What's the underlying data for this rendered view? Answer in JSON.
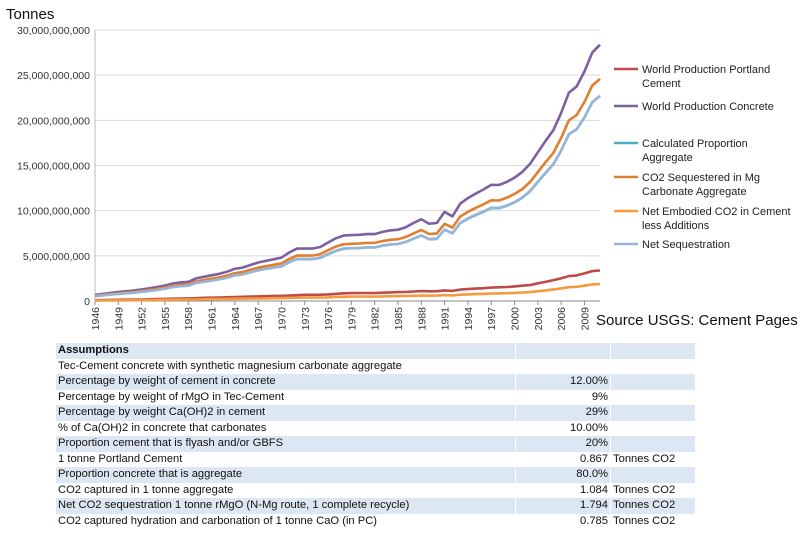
{
  "chart_data": {
    "type": "line",
    "ylabel": "Tonnes",
    "ylim": [
      0,
      30000000000
    ],
    "yticks": [
      0,
      5000000000,
      10000000000,
      15000000000,
      20000000000,
      25000000000,
      30000000000
    ],
    "ytick_labels": [
      "0",
      "5,000,000,000",
      "10,000,000,000",
      "15,000,000,000",
      "20,000,000,000",
      "25,000,000,000",
      "30,000,000,000"
    ],
    "grid": "horizontal",
    "legend_position": "right",
    "x": [
      1946,
      1947,
      1948,
      1949,
      1950,
      1951,
      1952,
      1953,
      1954,
      1955,
      1956,
      1957,
      1958,
      1959,
      1960,
      1961,
      1962,
      1963,
      1964,
      1965,
      1966,
      1967,
      1968,
      1969,
      1970,
      1971,
      1972,
      1973,
      1974,
      1975,
      1976,
      1977,
      1978,
      1979,
      1980,
      1981,
      1982,
      1983,
      1984,
      1985,
      1986,
      1987,
      1988,
      1989,
      1990,
      1991,
      1992,
      1993,
      1994,
      1995,
      1996,
      1997,
      1998,
      1999,
      2000,
      2001,
      2002,
      2003,
      2004,
      2005,
      2006,
      2007,
      2008,
      2009,
      2010,
      2011
    ],
    "xtick_labels": [
      "1946",
      "1949",
      "1952",
      "1955",
      "1958",
      "1961",
      "1964",
      "1967",
      "1970",
      "1973",
      "1976",
      "1979",
      "1982",
      "1985",
      "1988",
      "1991",
      "1994",
      "1997",
      "2000",
      "2003",
      "2006",
      "2009"
    ],
    "series": [
      {
        "name": "World Production Portland Cement",
        "color": "#be4b48",
        "values": [
          0.08,
          0.1,
          0.12,
          0.13,
          0.14,
          0.15,
          0.17,
          0.19,
          0.21,
          0.23,
          0.25,
          0.27,
          0.29,
          0.31,
          0.35,
          0.37,
          0.39,
          0.41,
          0.44,
          0.46,
          0.49,
          0.51,
          0.53,
          0.56,
          0.57,
          0.6,
          0.64,
          0.69,
          0.69,
          0.7,
          0.73,
          0.79,
          0.85,
          0.88,
          0.89,
          0.89,
          0.88,
          0.92,
          0.95,
          0.98,
          1.0,
          1.05,
          1.1,
          1.07,
          1.09,
          1.17,
          1.12,
          1.26,
          1.32,
          1.37,
          1.42,
          1.48,
          1.52,
          1.55,
          1.62,
          1.69,
          1.76,
          1.96,
          2.11,
          2.31,
          2.51,
          2.76,
          2.83,
          3.05,
          3.31,
          3.38
        ]
      },
      {
        "name": "World Production Concrete",
        "color": "#7d60a0",
        "values": [
          0.67,
          0.79,
          0.9,
          0.98,
          1.08,
          1.16,
          1.28,
          1.41,
          1.55,
          1.72,
          1.94,
          2.06,
          2.12,
          2.5,
          2.68,
          2.85,
          3.01,
          3.24,
          3.56,
          3.7,
          3.99,
          4.26,
          4.44,
          4.62,
          4.8,
          5.37,
          5.8,
          5.8,
          5.8,
          5.98,
          6.48,
          6.94,
          7.24,
          7.3,
          7.33,
          7.41,
          7.41,
          7.65,
          7.82,
          7.89,
          8.17,
          8.63,
          9.06,
          8.56,
          8.63,
          9.86,
          9.36,
          10.77,
          11.39,
          11.89,
          12.34,
          12.86,
          12.84,
          13.19,
          13.65,
          14.29,
          15.19,
          16.46,
          17.73,
          18.92,
          20.83,
          23.06,
          23.76,
          25.42,
          27.49,
          28.37
        ]
      },
      {
        "name": "Calculated Proportion Aggregate",
        "color": "#4bacc6",
        "values": [
          0.54,
          0.63,
          0.72,
          0.78,
          0.86,
          0.93,
          1.02,
          1.13,
          1.24,
          1.38,
          1.55,
          1.65,
          1.7,
          2.0,
          2.14,
          2.28,
          2.41,
          2.59,
          2.85,
          2.96,
          3.19,
          3.41,
          3.55,
          3.7,
          3.84,
          4.3,
          4.64,
          4.64,
          4.64,
          4.78,
          5.18,
          5.55,
          5.79,
          5.84,
          5.86,
          5.93,
          5.93,
          6.12,
          6.26,
          6.31,
          6.54,
          6.9,
          7.25,
          6.85,
          6.9,
          7.89,
          7.49,
          8.62,
          9.11,
          9.51,
          9.87,
          10.29,
          10.27,
          10.55,
          10.92,
          11.43,
          12.15,
          13.17,
          14.18,
          15.14,
          16.66,
          18.45,
          19.01,
          20.34,
          21.99,
          22.7
        ]
      },
      {
        "name": "CO2 Sequestered in Mg Carbonate Aggregate",
        "color": "#e07f2f",
        "values": [
          0.58,
          0.68,
          0.78,
          0.85,
          0.94,
          1.01,
          1.11,
          1.22,
          1.34,
          1.49,
          1.68,
          1.79,
          1.84,
          2.17,
          2.32,
          2.47,
          2.61,
          2.81,
          3.09,
          3.21,
          3.46,
          3.69,
          3.85,
          4.01,
          4.16,
          4.66,
          5.03,
          5.03,
          5.03,
          5.19,
          5.62,
          6.02,
          6.28,
          6.33,
          6.36,
          6.43,
          6.43,
          6.63,
          6.78,
          6.84,
          7.08,
          7.48,
          7.86,
          7.42,
          7.48,
          8.55,
          8.12,
          9.34,
          9.88,
          10.31,
          10.7,
          11.15,
          11.13,
          11.44,
          11.84,
          12.39,
          13.17,
          14.27,
          15.37,
          16.41,
          18.06,
          20.0,
          20.6,
          22.04,
          23.84,
          24.6
        ]
      },
      {
        "name": "Net Embodied CO2 in Cement less Additions",
        "color": "#f59a3f",
        "values": [
          0.05,
          0.06,
          0.07,
          0.07,
          0.08,
          0.09,
          0.1,
          0.11,
          0.12,
          0.13,
          0.14,
          0.15,
          0.16,
          0.17,
          0.19,
          0.21,
          0.22,
          0.23,
          0.24,
          0.26,
          0.27,
          0.28,
          0.29,
          0.31,
          0.32,
          0.33,
          0.36,
          0.38,
          0.38,
          0.39,
          0.4,
          0.44,
          0.47,
          0.49,
          0.49,
          0.49,
          0.49,
          0.51,
          0.53,
          0.54,
          0.55,
          0.58,
          0.61,
          0.59,
          0.6,
          0.65,
          0.62,
          0.7,
          0.73,
          0.76,
          0.79,
          0.82,
          0.84,
          0.86,
          0.9,
          0.94,
          0.98,
          1.09,
          1.17,
          1.28,
          1.39,
          1.53,
          1.57,
          1.69,
          1.84,
          1.88
        ]
      },
      {
        "name": "Net Sequestration",
        "color": "#98b4d8",
        "values": [
          0.53,
          0.62,
          0.71,
          0.78,
          0.86,
          0.92,
          1.01,
          1.11,
          1.22,
          1.36,
          1.54,
          1.64,
          1.68,
          2.0,
          2.13,
          2.26,
          2.39,
          2.58,
          2.85,
          2.95,
          3.19,
          3.41,
          3.56,
          3.7,
          3.84,
          4.33,
          4.67,
          4.65,
          4.65,
          4.8,
          5.22,
          5.58,
          5.81,
          5.84,
          5.87,
          5.94,
          5.94,
          6.12,
          6.25,
          6.3,
          6.53,
          6.9,
          7.25,
          6.83,
          6.88,
          7.9,
          7.5,
          8.64,
          9.15,
          9.55,
          9.91,
          10.33,
          10.29,
          10.58,
          10.94,
          11.45,
          12.19,
          13.18,
          14.2,
          15.13,
          16.67,
          18.47,
          19.03,
          20.35,
          22.0,
          22.72
        ]
      }
    ],
    "values_unit_note": "series values are in billions of tonnes"
  },
  "source_text": "Source USGS: Cement Pages",
  "table": {
    "header": "Assumptions",
    "rows": [
      {
        "label": "Tec-Cement concrete with synthetic magnesium carbonate aggregate",
        "value": "",
        "unit": ""
      },
      {
        "label": "Percentage by weight of cement in concrete",
        "value": "12.00%",
        "unit": ""
      },
      {
        "label": "Percentage by weight of rMgO in Tec-Cement",
        "value": "9%",
        "unit": ""
      },
      {
        "label": "Percentage by weight Ca(OH)2 in cement",
        "value": "29%",
        "unit": ""
      },
      {
        "label": "% of Ca(OH)2 in concrete that carbonates",
        "value": "10.00%",
        "unit": ""
      },
      {
        "label": "Proportion cement that is flyash and/or GBFS",
        "value": "20%",
        "unit": ""
      },
      {
        "label": "1 tonne Portland Cement",
        "value": "0.867",
        "unit": "Tonnes CO2"
      },
      {
        "label": "Proportion concrete that is aggregate",
        "value": "80.0%",
        "unit": ""
      },
      {
        "label": "CO2 captured in 1 tonne aggregate",
        "value": "1.084",
        "unit": "Tonnes CO2"
      },
      {
        "label": "Net CO2 sequestration 1 tonne rMgO (N-Mg route, 1 complete recycle)",
        "value": "1.794",
        "unit": "Tonnes CO2"
      },
      {
        "label": "CO2 captured hydration and carbonation of 1 tonne CaO (in PC)",
        "value": "0.785",
        "unit": "Tonnes CO2"
      }
    ]
  }
}
